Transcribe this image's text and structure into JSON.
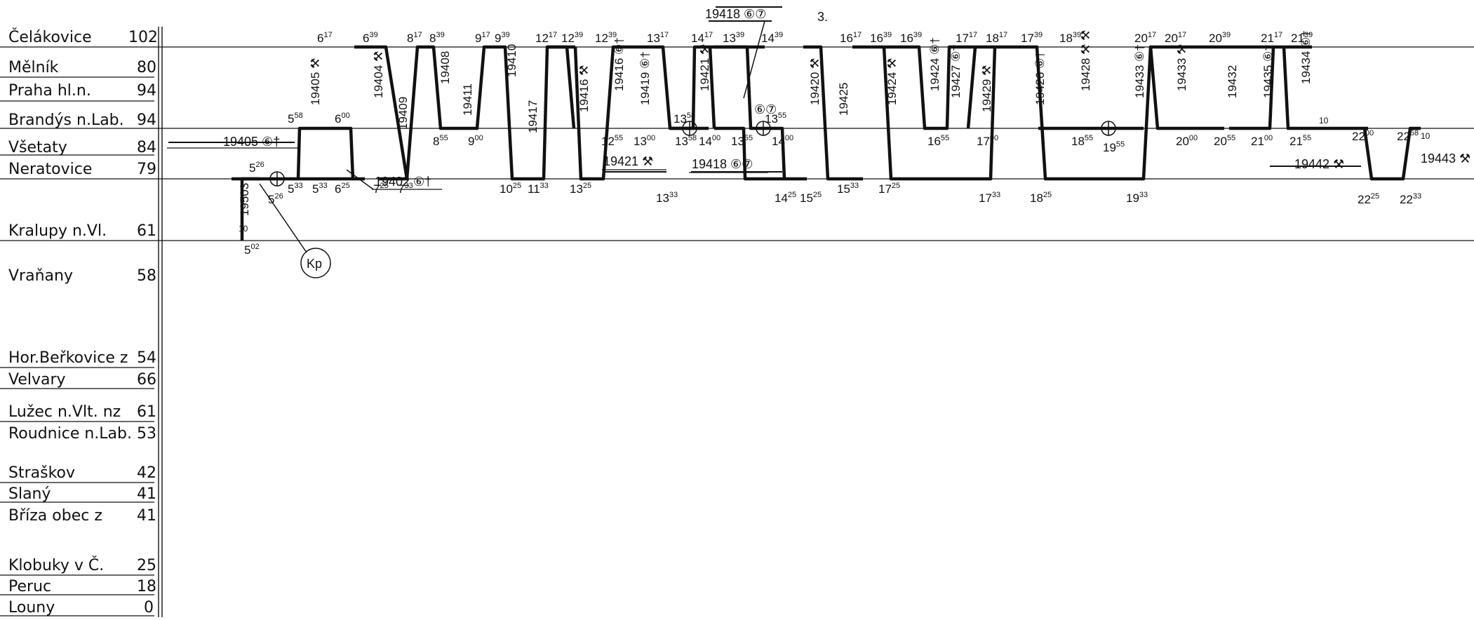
{
  "page_marker": "3.",
  "stations": [
    {
      "name": "Čelákovice",
      "km": "102"
    },
    {
      "name": "Mělník",
      "km": "80"
    },
    {
      "name": "Praha hl.n.",
      "km": "94"
    },
    {
      "name": "Brandýs n.Lab.",
      "km": "94"
    },
    {
      "name": "Všetaty",
      "km": "84"
    },
    {
      "name": "Neratovice",
      "km": "79"
    },
    {
      "name": "Kralupy n.Vl.",
      "km": "61"
    },
    {
      "name": "Vraňany",
      "km": "58"
    },
    {
      "name": "Hor.Beřkovice z",
      "km": "54"
    },
    {
      "name": "Velvary",
      "km": "66"
    },
    {
      "name": "Lužec n.Vlt. nz",
      "km": "61"
    },
    {
      "name": "Roudnice n.Lab.",
      "km": "53"
    },
    {
      "name": "Straškov",
      "km": "42"
    },
    {
      "name": "Slaný",
      "km": "41"
    },
    {
      "name": "Bříza obec z",
      "km": "41"
    },
    {
      "name": "Klobuky v Č.",
      "km": "25"
    },
    {
      "name": "Peruc",
      "km": "18"
    },
    {
      "name": "Louny",
      "km": "0"
    }
  ],
  "top_times": [
    {
      "h": "6",
      "m": "17"
    },
    {
      "h": "6",
      "m": "39"
    },
    {
      "h": "8",
      "m": "17"
    },
    {
      "h": "8",
      "m": "39"
    },
    {
      "h": "9",
      "m": "17"
    },
    {
      "h": "9",
      "m": "39"
    },
    {
      "h": "12",
      "m": "17"
    },
    {
      "h": "12",
      "m": "39"
    },
    {
      "h": "12",
      "m": "39"
    },
    {
      "h": "13",
      "m": "17"
    },
    {
      "h": "14",
      "m": "17"
    },
    {
      "h": "13",
      "m": "39"
    },
    {
      "h": "14",
      "m": "39"
    },
    {
      "h": "16",
      "m": "17"
    },
    {
      "h": "16",
      "m": "39"
    },
    {
      "h": "16",
      "m": "39"
    },
    {
      "h": "17",
      "m": "17"
    },
    {
      "h": "18",
      "m": "17"
    },
    {
      "h": "17",
      "m": "39"
    },
    {
      "h": "18",
      "m": "39"
    },
    {
      "h": "20",
      "m": "17"
    },
    {
      "h": "20",
      "m": "17"
    },
    {
      "h": "20",
      "m": "39"
    },
    {
      "h": "21",
      "m": "17"
    },
    {
      "h": "21",
      "m": "39"
    }
  ],
  "vset_times": [
    {
      "h": "5",
      "m": "58"
    },
    {
      "h": "6",
      "m": "00"
    },
    {
      "h": "8",
      "m": "55"
    },
    {
      "h": "9",
      "m": "00"
    },
    {
      "h": "12",
      "m": "55"
    },
    {
      "h": "13",
      "m": "00"
    },
    {
      "h": "13",
      "m": "58"
    },
    {
      "h": "14",
      "m": "00"
    },
    {
      "h": "13",
      "m": "55"
    },
    {
      "h": "14",
      "m": "00"
    },
    {
      "h": "16",
      "m": "55"
    },
    {
      "h": "17",
      "m": "00"
    },
    {
      "h": "18",
      "m": "55"
    },
    {
      "h": "19",
      "m": "55"
    },
    {
      "h": "20",
      "m": "00"
    },
    {
      "h": "20",
      "m": "55"
    },
    {
      "h": "21",
      "m": "00"
    },
    {
      "h": "21",
      "m": "55"
    },
    {
      "h": "22",
      "m": "00"
    },
    {
      "h": "22",
      "m": "58"
    },
    {
      "h": "13",
      "m": "58"
    },
    {
      "h": "13",
      "m": "55"
    }
  ],
  "ner_times": [
    {
      "h": "5",
      "m": "26"
    },
    {
      "h": "5",
      "m": "26"
    },
    {
      "h": "5",
      "m": "33"
    },
    {
      "h": "5",
      "m": "33"
    },
    {
      "h": "6",
      "m": "25"
    },
    {
      "h": "7",
      "m": "25"
    },
    {
      "h": "7",
      "m": "33"
    },
    {
      "h": "10",
      "m": "25"
    },
    {
      "h": "11",
      "m": "33"
    },
    {
      "h": "13",
      "m": "25"
    },
    {
      "h": "13",
      "m": "33"
    },
    {
      "h": "14",
      "m": "25"
    },
    {
      "h": "15",
      "m": "25"
    },
    {
      "h": "15",
      "m": "33"
    },
    {
      "h": "17",
      "m": "25"
    },
    {
      "h": "17",
      "m": "33"
    },
    {
      "h": "18",
      "m": "25"
    },
    {
      "h": "19",
      "m": "33"
    },
    {
      "h": "22",
      "m": "25"
    },
    {
      "h": "22",
      "m": "33"
    }
  ],
  "kralupy_time": {
    "h": "5",
    "m": "02"
  },
  "trains": [
    "19405 ⚒",
    "19404 ⚒",
    "19409",
    "19408",
    "19411",
    "19410",
    "19417",
    "19416 ⚒",
    "19416 ⑥†",
    "19419 ⑥†",
    "19421 ⚒",
    "19420 ⚒",
    "19425",
    "19424 ⚒",
    "19424 ⑥†",
    "19427 ⑥†",
    "19429 ⚒",
    "19426 ⑥†",
    "19428 ⚒ ⚒",
    "19433 ⑥†",
    "19433 ⚒",
    "19432",
    "19435 ⑥†",
    "19434 ⑥†",
    "19503"
  ],
  "callouts": {
    "c19418_top": "19418 ⑥⑦",
    "c19405": "19405 ⑥†",
    "c19402": "19402 ⑥†",
    "c19421": "19421 ⚒",
    "c19418_low": "19418 ⑥⑦",
    "c19442": "19442 ⚒",
    "c19443": "19443 ⚒",
    "c67_mid": "⑥⑦"
  },
  "kp_label": "Kp",
  "small_marks": [
    "10",
    "10",
    "10"
  ]
}
